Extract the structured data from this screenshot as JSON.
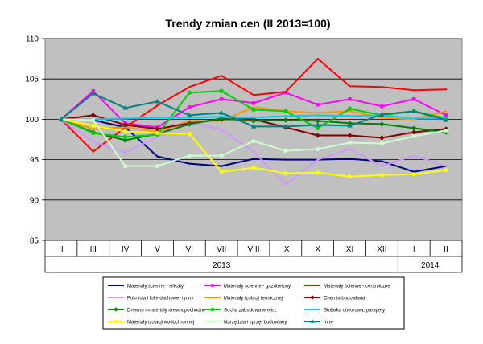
{
  "chart_data": {
    "type": "line",
    "title": "Trendy zmian cen (II 2013=100)",
    "categories": [
      "II",
      "III",
      "IV",
      "V",
      "VI",
      "VII",
      "VIII",
      "IX",
      "X",
      "XI",
      "XII",
      "I",
      "II"
    ],
    "year_groups": [
      {
        "label": "2013",
        "from": 0,
        "to": 10
      },
      {
        "label": "2014",
        "from": 11,
        "to": 12
      }
    ],
    "ylim": [
      85,
      110
    ],
    "yticks": [
      85,
      90,
      95,
      100,
      105,
      110
    ],
    "grid": true,
    "legend_position": "bottom",
    "series": [
      {
        "name": "Materiały ścienne - silikaty",
        "color": "#00007f",
        "marker": "none",
        "values": [
          100,
          99.9,
          99.0,
          95.4,
          94.5,
          94.2,
          95.1,
          95.0,
          95.0,
          95.1,
          94.8,
          93.5,
          94.2
        ]
      },
      {
        "name": "Materiały ścienne - gazobetony",
        "color": "#ff00ff",
        "marker": "square",
        "values": [
          100,
          103.5,
          99.5,
          99.0,
          101.5,
          102.5,
          102.0,
          103.3,
          101.8,
          102.5,
          101.6,
          102.5,
          100.5
        ]
      },
      {
        "name": "Materiały ścienne - ceramiczne",
        "color": "#ff0000",
        "marker": "none",
        "values": [
          100,
          96.0,
          99.0,
          101.7,
          104.0,
          105.4,
          103.0,
          103.4,
          107.5,
          104.1,
          104.0,
          103.6,
          103.7
        ]
      },
      {
        "name": "Pokrycia i folie dachowe, rynny",
        "color": "#cc99ff",
        "marker": "none",
        "values": [
          100,
          97.2,
          95.9,
          97.8,
          99.7,
          98.7,
          96.0,
          91.9,
          95.0,
          96.3,
          94.2,
          95.5,
          94.2
        ]
      },
      {
        "name": "Materiały izolacji termicznej",
        "color": "#ff9900",
        "marker": "none",
        "values": [
          100,
          98.8,
          99.0,
          98.5,
          99.8,
          99.8,
          101.5,
          101.0,
          100.8,
          101.0,
          100.2,
          100.0,
          101.0
        ]
      },
      {
        "name": "Chemia budowlana",
        "color": "#800000",
        "marker": "diamond",
        "values": [
          100,
          100.5,
          99.3,
          98.8,
          99.5,
          100.0,
          100.0,
          99.0,
          98.0,
          98.0,
          97.7,
          98.4,
          98.8
        ]
      },
      {
        "name": "Drewno i materiały drewnopochodne",
        "color": "#007f00",
        "marker": "diamond",
        "values": [
          100,
          98.4,
          97.4,
          98.2,
          99.4,
          100.1,
          99.8,
          99.9,
          99.8,
          99.5,
          99.4,
          98.9,
          98.4
        ]
      },
      {
        "name": "Sucha zabudowa wnętrz",
        "color": "#00cc00",
        "marker": "circle",
        "values": [
          100,
          98.3,
          97.8,
          98.1,
          103.3,
          103.5,
          101.2,
          101.0,
          98.9,
          101.3,
          100.5,
          101.0,
          100.1
        ]
      },
      {
        "name": "Stolarka otworowa, parapety",
        "color": "#00ccff",
        "marker": "none",
        "values": [
          100,
          100.0,
          100.1,
          100.2,
          100.2,
          100.3,
          100.2,
          100.4,
          100.5,
          100.4,
          100.5,
          100.1,
          100.1
        ]
      },
      {
        "name": "Materiały izolacji wodochronnej",
        "color": "#ffff00",
        "marker": "square",
        "values": [
          100,
          99.2,
          98.5,
          98.3,
          98.2,
          93.5,
          94.0,
          93.3,
          93.4,
          92.9,
          93.1,
          93.2,
          93.7
        ]
      },
      {
        "name": "Narzędzia i sprzęt budowlany",
        "color": "#ccffcc",
        "marker": "square",
        "values": [
          100,
          99.9,
          94.2,
          94.2,
          95.5,
          95.5,
          97.3,
          96.1,
          96.3,
          97.1,
          97.0,
          97.9,
          98.6
        ]
      },
      {
        "name": "Inne",
        "color": "#008080",
        "marker": "triangle",
        "values": [
          100,
          103.2,
          101.4,
          102.2,
          100.5,
          100.8,
          99.1,
          99.1,
          99.3,
          99.2,
          100.6,
          101.0,
          99.9
        ]
      }
    ]
  }
}
